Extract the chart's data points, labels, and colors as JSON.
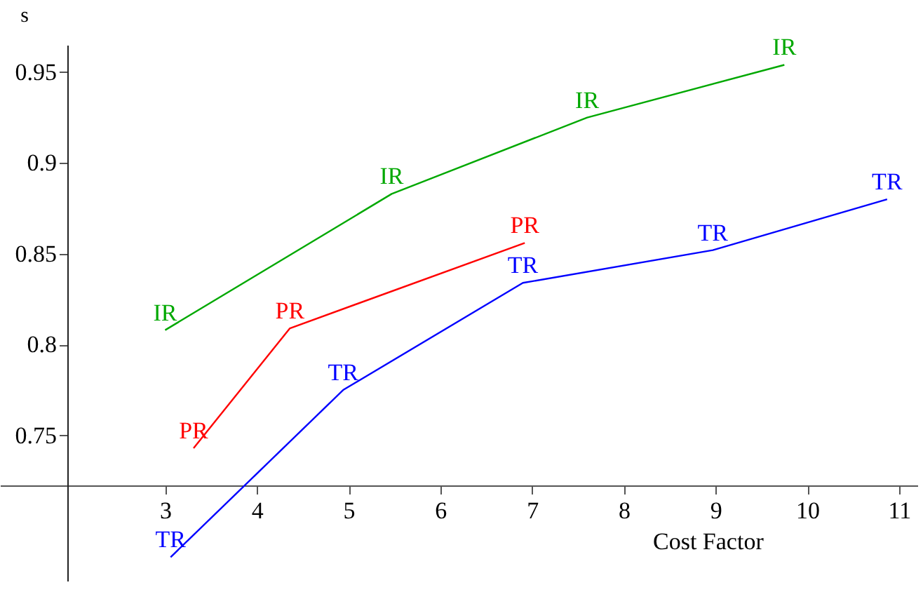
{
  "chart_data": {
    "type": "line",
    "xlabel": "Cost Factor",
    "ylabel": "s",
    "xlim": [
      1.2,
      11.2
    ],
    "ylim": [
      0.67,
      0.965
    ],
    "xticks": [
      3,
      4,
      5,
      6,
      7,
      8,
      9,
      10,
      11
    ],
    "yticks": [
      0.75,
      0.8,
      0.85,
      0.9,
      0.95
    ],
    "series": [
      {
        "name": "IR",
        "color": "#00a800",
        "x": [
          3.0,
          5.47,
          7.6,
          9.75
        ],
        "values": [
          0.808,
          0.883,
          0.925,
          0.954
        ]
      },
      {
        "name": "PR",
        "color": "#ff0000",
        "x": [
          3.31,
          4.36,
          6.92
        ],
        "values": [
          0.743,
          0.809,
          0.856
        ]
      },
      {
        "name": "TR",
        "color": "#0000ff",
        "x": [
          3.06,
          4.94,
          6.9,
          8.97,
          10.87
        ],
        "values": [
          0.683,
          0.775,
          0.834,
          0.852,
          0.88
        ]
      }
    ],
    "marker": "none"
  }
}
